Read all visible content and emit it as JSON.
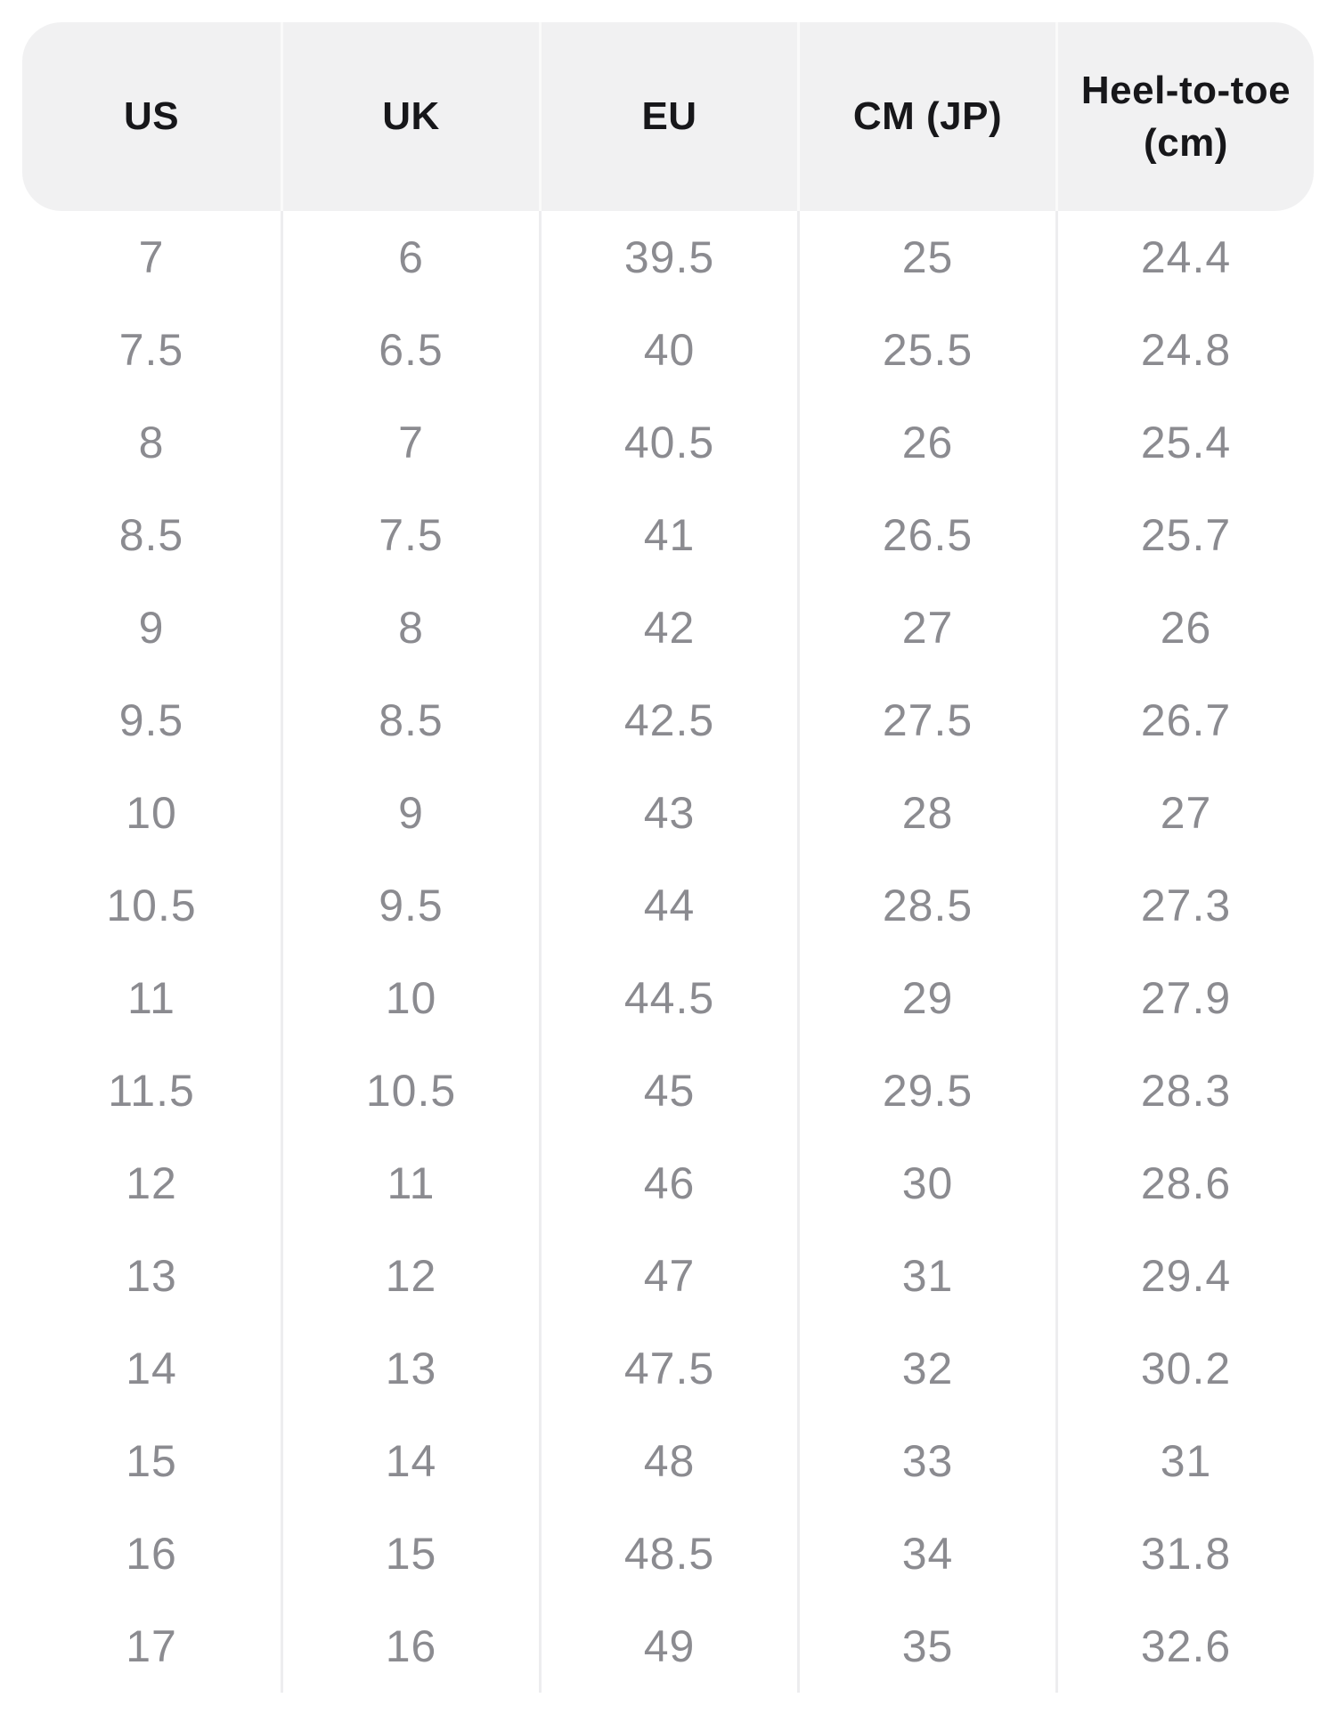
{
  "table": {
    "headers": [
      {
        "label": "US"
      },
      {
        "label": "UK"
      },
      {
        "label": "EU"
      },
      {
        "label": "CM (JP)"
      },
      {
        "label": "Heel-to-toe\n(cm)"
      }
    ],
    "rows": [
      [
        "7",
        "6",
        "39.5",
        "25",
        "24.4"
      ],
      [
        "7.5",
        "6.5",
        "40",
        "25.5",
        "24.8"
      ],
      [
        "8",
        "7",
        "40.5",
        "26",
        "25.4"
      ],
      [
        "8.5",
        "7.5",
        "41",
        "26.5",
        "25.7"
      ],
      [
        "9",
        "8",
        "42",
        "27",
        "26"
      ],
      [
        "9.5",
        "8.5",
        "42.5",
        "27.5",
        "26.7"
      ],
      [
        "10",
        "9",
        "43",
        "28",
        "27"
      ],
      [
        "10.5",
        "9.5",
        "44",
        "28.5",
        "27.3"
      ],
      [
        "11",
        "10",
        "44.5",
        "29",
        "27.9"
      ],
      [
        "11.5",
        "10.5",
        "45",
        "29.5",
        "28.3"
      ],
      [
        "12",
        "11",
        "46",
        "30",
        "28.6"
      ],
      [
        "13",
        "12",
        "47",
        "31",
        "29.4"
      ],
      [
        "14",
        "13",
        "47.5",
        "32",
        "30.2"
      ],
      [
        "15",
        "14",
        "48",
        "33",
        "31"
      ],
      [
        "16",
        "15",
        "48.5",
        "34",
        "31.8"
      ],
      [
        "17",
        "16",
        "49",
        "35",
        "32.6"
      ]
    ],
    "colors": {
      "header_background": "#f1f1f2",
      "header_text": "#17171a",
      "body_text": "#8b8b90",
      "header_divider": "#fafafa",
      "body_divider": "#ededef",
      "page_background": "#ffffff"
    }
  }
}
